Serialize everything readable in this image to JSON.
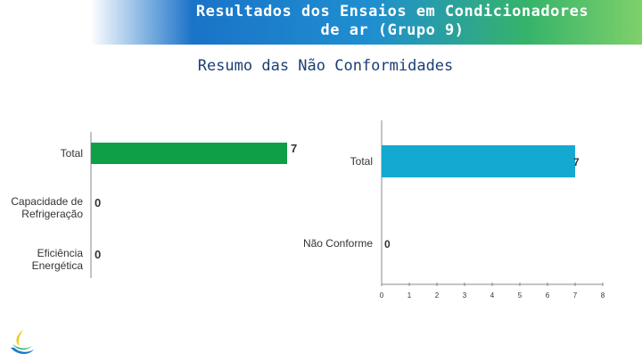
{
  "header": {
    "title_line1": "Resultados dos Ensaios em Condicionadores",
    "title_line2": "de ar (Grupo 9)"
  },
  "subtitle": "Resumo das Não Conformidades",
  "colors": {
    "left_bar": "#0e9f47",
    "right_bar": "#14a9d0",
    "axis": "#888888"
  },
  "chart_data": [
    {
      "type": "bar",
      "orientation": "horizontal",
      "categories": [
        [
          "Total"
        ],
        [
          "Capacidade de",
          "Refrigeração"
        ],
        [
          "Eficiência",
          "Energética"
        ]
      ],
      "values": [
        7,
        0,
        0
      ],
      "data_labels": [
        "7",
        "0",
        "0"
      ],
      "xlim": [
        0,
        7
      ],
      "grid": false
    },
    {
      "type": "bar",
      "orientation": "horizontal",
      "categories": [
        [
          "Total"
        ],
        [
          "Não Conforme"
        ]
      ],
      "values": [
        7,
        0
      ],
      "data_labels": [
        "7",
        "0"
      ],
      "xlim": [
        0,
        8
      ],
      "x_ticks": [
        "0",
        "1",
        "2",
        "3",
        "4",
        "5",
        "6",
        "7",
        "8"
      ],
      "grid": false
    }
  ]
}
